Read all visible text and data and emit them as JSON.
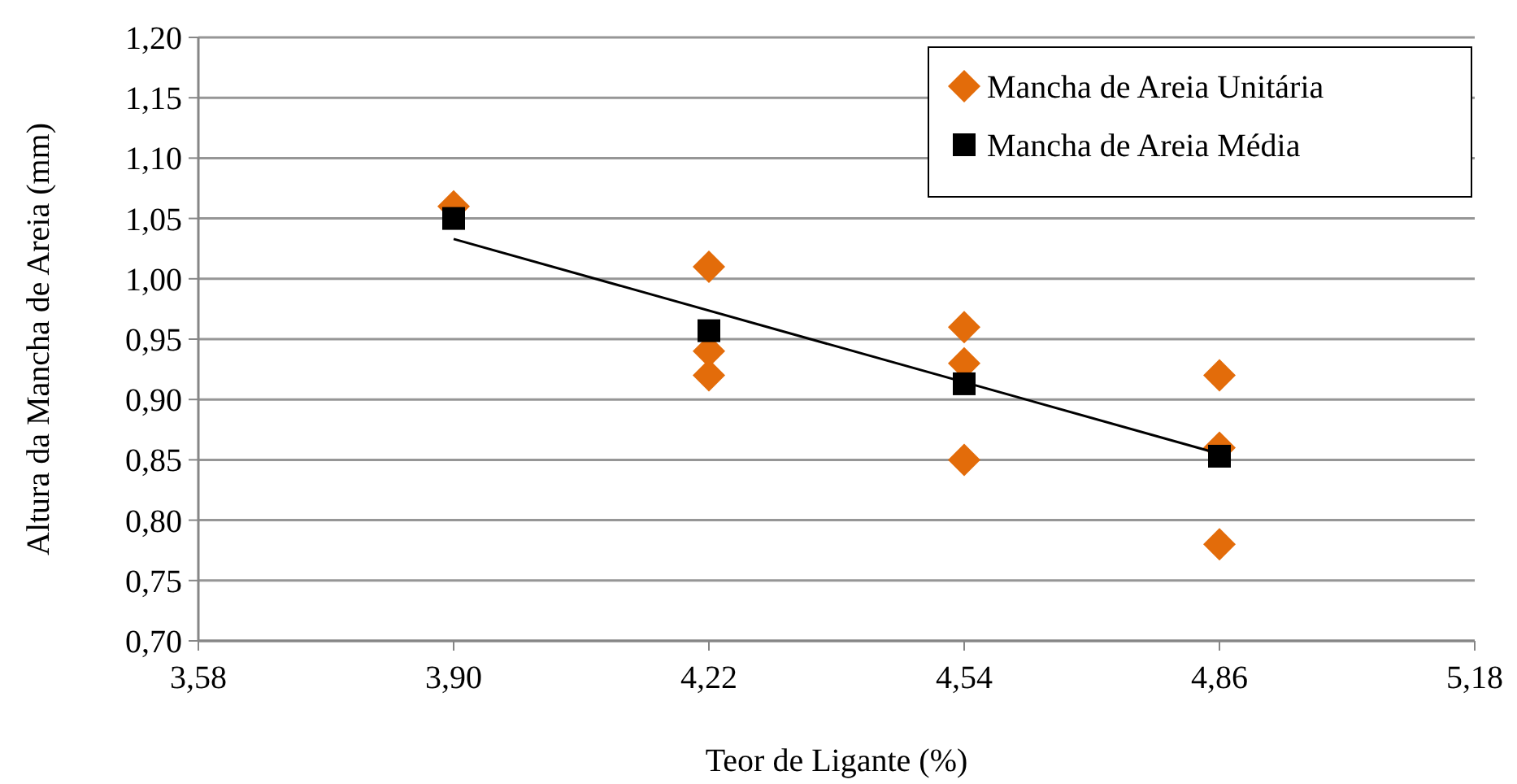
{
  "chart_data": {
    "type": "scatter",
    "xlabel": "Teor de Ligante (%)",
    "ylabel": "Altura da Mancha de Areia (mm)",
    "xlim": [
      3.58,
      5.18
    ],
    "xticks": [
      {
        "value": 3.58,
        "label": "3,58"
      },
      {
        "value": 3.9,
        "label": "3,90"
      },
      {
        "value": 4.22,
        "label": "4,22"
      },
      {
        "value": 4.54,
        "label": "4,54"
      },
      {
        "value": 4.86,
        "label": "4,86"
      },
      {
        "value": 5.18,
        "label": "5,18"
      }
    ],
    "ylim": [
      0.7,
      1.2
    ],
    "yticks": [
      {
        "value": 0.7,
        "label": "0,70"
      },
      {
        "value": 0.75,
        "label": "0,75"
      },
      {
        "value": 0.8,
        "label": "0,80"
      },
      {
        "value": 0.85,
        "label": "0,85"
      },
      {
        "value": 0.9,
        "label": "0,90"
      },
      {
        "value": 0.95,
        "label": "0,95"
      },
      {
        "value": 1.0,
        "label": "1,00"
      },
      {
        "value": 1.05,
        "label": "1,05"
      },
      {
        "value": 1.1,
        "label": "1,10"
      },
      {
        "value": 1.15,
        "label": "1,15"
      },
      {
        "value": 1.2,
        "label": "1,20"
      }
    ],
    "grid": "y",
    "legend": "top right",
    "series": [
      {
        "name": "Mancha de Areia Unitária",
        "color": "#e36c0a",
        "marker": "diamond",
        "x": [
          3.9,
          4.22,
          4.22,
          4.22,
          4.54,
          4.54,
          4.54,
          4.86,
          4.86,
          4.86
        ],
        "values": [
          1.06,
          1.01,
          0.94,
          0.92,
          0.96,
          0.93,
          0.85,
          0.92,
          0.86,
          0.78
        ]
      },
      {
        "type": "line",
        "color": "#000000",
        "marker": "none",
        "x": [
          3.9,
          4.86
        ],
        "values": [
          1.033,
          0.855
        ]
      },
      {
        "name": "Mancha de Areia Média",
        "color": "#000000",
        "marker": "square",
        "x": [
          3.9,
          4.22,
          4.54,
          4.86
        ],
        "values": [
          1.05,
          0.957,
          0.913,
          0.853
        ]
      }
    ]
  }
}
